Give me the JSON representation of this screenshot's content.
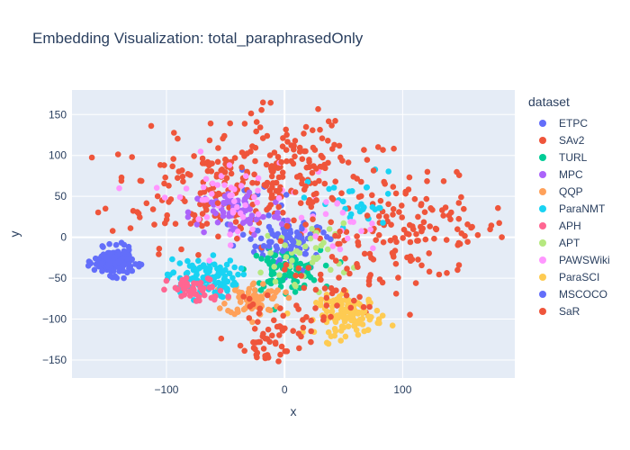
{
  "chart_data": {
    "type": "scatter",
    "title": "Embedding Visualization: total_paraphrasedOnly",
    "xlabel": "x",
    "ylabel": "y",
    "xlim": [
      -180,
      195
    ],
    "ylim": [
      -172,
      180
    ],
    "xticks": [
      -100,
      0,
      100
    ],
    "yticks": [
      -150,
      -100,
      -50,
      0,
      50,
      100,
      150
    ],
    "grid": true,
    "legend_title": "dataset",
    "legend_position": "right",
    "series": [
      {
        "name": "ETPC",
        "color": "#636efa",
        "clusters": [
          {
            "cx": 5,
            "cy": -10,
            "sx": 15,
            "sy": 15,
            "n": 60
          },
          {
            "cx": -20,
            "cy": 20,
            "sx": 25,
            "sy": 25,
            "n": 20
          }
        ]
      },
      {
        "name": "SAv2",
        "color": "#EF553B",
        "clusters": [
          {
            "cx": -60,
            "cy": 60,
            "sx": 45,
            "sy": 35,
            "n": 170
          },
          {
            "cx": 110,
            "cy": 10,
            "sx": 40,
            "sy": 30,
            "n": 130
          },
          {
            "cx": -5,
            "cy": 80,
            "sx": 30,
            "sy": 40,
            "n": 90
          },
          {
            "cx": -15,
            "cy": -130,
            "sx": 10,
            "sy": 12,
            "n": 25
          }
        ]
      },
      {
        "name": "TURL",
        "color": "#00cc96",
        "clusters": [
          {
            "cx": 0,
            "cy": -40,
            "sx": 15,
            "sy": 12,
            "n": 90
          }
        ]
      },
      {
        "name": "MPC",
        "color": "#ab63fa",
        "clusters": [
          {
            "cx": -40,
            "cy": 30,
            "sx": 20,
            "sy": 15,
            "n": 70
          }
        ]
      },
      {
        "name": "QQP",
        "color": "#FFA15A",
        "clusters": [
          {
            "cx": -25,
            "cy": -75,
            "sx": 12,
            "sy": 10,
            "n": 70
          }
        ]
      },
      {
        "name": "ParaNMT",
        "color": "#19d3f3",
        "clusters": [
          {
            "cx": -70,
            "cy": -50,
            "sx": 15,
            "sy": 12,
            "n": 110
          },
          {
            "cx": 60,
            "cy": 40,
            "sx": 20,
            "sy": 20,
            "n": 30
          }
        ]
      },
      {
        "name": "APH",
        "color": "#FF6692",
        "clusters": [
          {
            "cx": -75,
            "cy": -65,
            "sx": 12,
            "sy": 8,
            "n": 50
          }
        ]
      },
      {
        "name": "APT",
        "color": "#B6E880",
        "clusters": [
          {
            "cx": 20,
            "cy": -20,
            "sx": 18,
            "sy": 18,
            "n": 40
          }
        ]
      },
      {
        "name": "PAWSWiki",
        "color": "#FF97FF",
        "clusters": [
          {
            "cx": -50,
            "cy": 50,
            "sx": 30,
            "sy": 25,
            "n": 50
          },
          {
            "cx": 40,
            "cy": 10,
            "sx": 20,
            "sy": 20,
            "n": 20
          }
        ]
      },
      {
        "name": "ParaSCI",
        "color": "#FECB52",
        "clusters": [
          {
            "cx": 55,
            "cy": -95,
            "sx": 14,
            "sy": 12,
            "n": 120
          }
        ]
      },
      {
        "name": "MSCOCO",
        "color": "#636efa",
        "clusters": [
          {
            "cx": -145,
            "cy": -30,
            "sx": 8,
            "sy": 8,
            "n": 200
          },
          {
            "cx": 5,
            "cy": 0,
            "sx": 15,
            "sy": 12,
            "n": 20
          }
        ]
      },
      {
        "name": "SaR",
        "color": "#EF553B",
        "clusters": [
          {
            "cx": -5,
            "cy": -110,
            "sx": 20,
            "sy": 15,
            "n": 40
          },
          {
            "cx": 50,
            "cy": -40,
            "sx": 30,
            "sy": 30,
            "n": 50
          },
          {
            "cx": 20,
            "cy": 80,
            "sx": 30,
            "sy": 25,
            "n": 50
          }
        ]
      }
    ]
  }
}
